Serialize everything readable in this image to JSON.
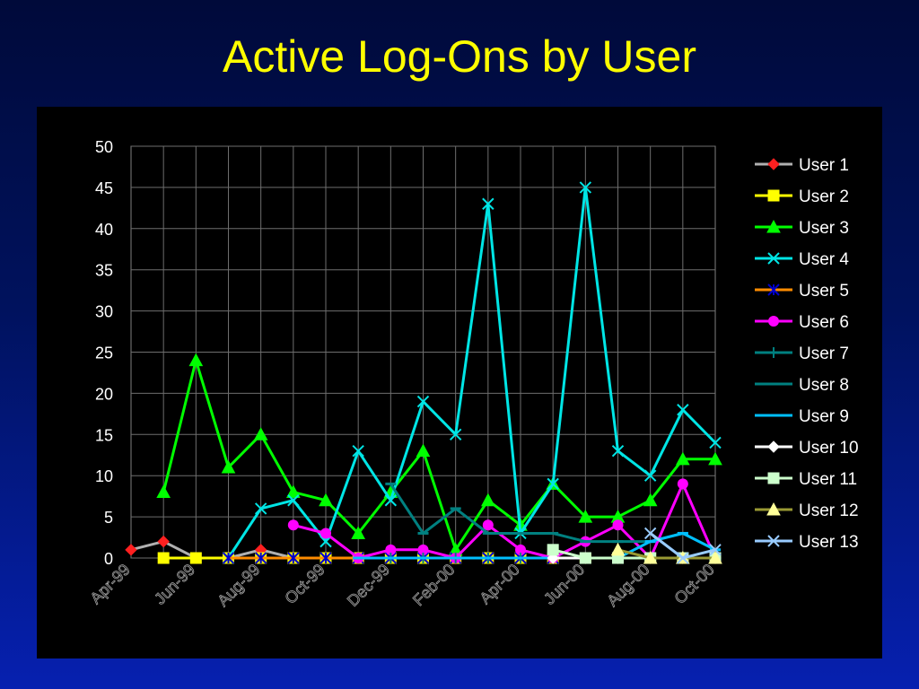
{
  "slide": {
    "title": "Active Log-Ons by User",
    "background": "#00125e",
    "title_color": "#ffff00"
  },
  "chart_data": {
    "type": "line",
    "title": "Active Log-Ons by User",
    "xlabel": "",
    "ylabel": "",
    "ylim": [
      0,
      50
    ],
    "yticks": [
      0,
      5,
      10,
      15,
      20,
      25,
      30,
      35,
      40,
      45,
      50
    ],
    "x": [
      "Apr-99",
      "May-99",
      "Jun-99",
      "Jul-99",
      "Aug-99",
      "Sep-99",
      "Oct-99",
      "Nov-99",
      "Dec-99",
      "Jan-00",
      "Feb-00",
      "Mar-00",
      "Apr-00",
      "May-00",
      "Jun-00",
      "Jul-00",
      "Aug-00",
      "Sep-00",
      "Oct-00"
    ],
    "x_tick_labels": [
      "Apr-99",
      "",
      "Jun-99",
      "",
      "Aug-99",
      "",
      "Oct-99",
      "",
      "Dec-99",
      "",
      "Feb-00",
      "",
      "Apr-00",
      "",
      "Jun-00",
      "",
      "Aug-00",
      "",
      "Oct-00"
    ],
    "grid": true,
    "legend_position": "right",
    "series": [
      {
        "name": "User 1",
        "color": "#b0b0b0",
        "marker": "diamond",
        "marker_color": "#ff2020",
        "values": [
          1,
          2,
          0,
          0,
          1,
          0,
          0,
          0,
          0,
          0,
          0,
          0,
          0,
          0,
          0,
          0,
          0,
          0,
          0
        ]
      },
      {
        "name": "User 2",
        "color": "#ffff00",
        "marker": "square",
        "marker_color": "#ffff00",
        "values": [
          null,
          0,
          0,
          0,
          0,
          0,
          0,
          0,
          0,
          0,
          0,
          0,
          0,
          0,
          0,
          0,
          0,
          0,
          0
        ]
      },
      {
        "name": "User 3",
        "color": "#00ff00",
        "marker": "triangle",
        "marker_color": "#00ff00",
        "values": [
          null,
          8,
          24,
          11,
          15,
          8,
          7,
          3,
          8,
          13,
          1,
          7,
          4,
          9,
          5,
          5,
          7,
          12,
          12
        ]
      },
      {
        "name": "User 4",
        "color": "#00e5e5",
        "marker": "x",
        "marker_color": "#00e5e5",
        "values": [
          null,
          null,
          null,
          0,
          6,
          7,
          2,
          13,
          7,
          19,
          15,
          43,
          3,
          9,
          45,
          13,
          10,
          18,
          14
        ]
      },
      {
        "name": "User 5",
        "color": "#ff8c00",
        "marker": "star",
        "marker_color": "#0000cc",
        "values": [
          null,
          null,
          null,
          0,
          0,
          0,
          0,
          0,
          0,
          0,
          0,
          0,
          0,
          0,
          0,
          0,
          0,
          0,
          0
        ]
      },
      {
        "name": "User 6",
        "color": "#ff00ff",
        "marker": "circle",
        "marker_color": "#ff00ff",
        "values": [
          null,
          null,
          null,
          null,
          null,
          4,
          3,
          0,
          1,
          1,
          0,
          4,
          1,
          0,
          2,
          4,
          0,
          9,
          0
        ]
      },
      {
        "name": "User 7",
        "color": "#008080",
        "marker": "plus",
        "marker_color": "#008080",
        "values": [
          null,
          null,
          null,
          null,
          null,
          null,
          null,
          null,
          0,
          0,
          0,
          0,
          0,
          0,
          0,
          0,
          0,
          0,
          0
        ]
      },
      {
        "name": "User 8",
        "color": "#008080",
        "marker": "dash",
        "marker_color": "#008080",
        "values": [
          null,
          null,
          null,
          null,
          null,
          null,
          null,
          null,
          9,
          3,
          6,
          3,
          3,
          3,
          2,
          2,
          2,
          3,
          1
        ]
      },
      {
        "name": "User 9",
        "color": "#00bfff",
        "marker": "dash",
        "marker_color": "#00bfff",
        "values": [
          null,
          null,
          null,
          null,
          null,
          null,
          null,
          0,
          0,
          0,
          0,
          0,
          0,
          0,
          0,
          0,
          2,
          3,
          1
        ]
      },
      {
        "name": "User 10",
        "color": "#ffffff",
        "marker": "diamond",
        "marker_color": "#ffffff",
        "values": [
          null,
          null,
          null,
          null,
          null,
          null,
          null,
          null,
          null,
          null,
          null,
          null,
          null,
          0,
          0,
          0,
          0,
          0,
          0
        ]
      },
      {
        "name": "User 11",
        "color": "#ccffcc",
        "marker": "square",
        "marker_color": "#ccffcc",
        "values": [
          null,
          null,
          null,
          null,
          null,
          null,
          null,
          null,
          null,
          null,
          null,
          null,
          null,
          1,
          0,
          0,
          0,
          0,
          0
        ]
      },
      {
        "name": "User 12",
        "color": "#999933",
        "marker": "triangle",
        "marker_color": "#ffff99",
        "values": [
          null,
          null,
          null,
          null,
          null,
          null,
          null,
          null,
          null,
          null,
          null,
          null,
          null,
          null,
          null,
          1,
          0,
          0,
          0
        ]
      },
      {
        "name": "User 13",
        "color": "#99ccff",
        "marker": "x",
        "marker_color": "#99ccff",
        "values": [
          null,
          null,
          null,
          null,
          null,
          null,
          null,
          null,
          null,
          null,
          null,
          null,
          null,
          null,
          null,
          null,
          3,
          0,
          1
        ]
      }
    ]
  }
}
